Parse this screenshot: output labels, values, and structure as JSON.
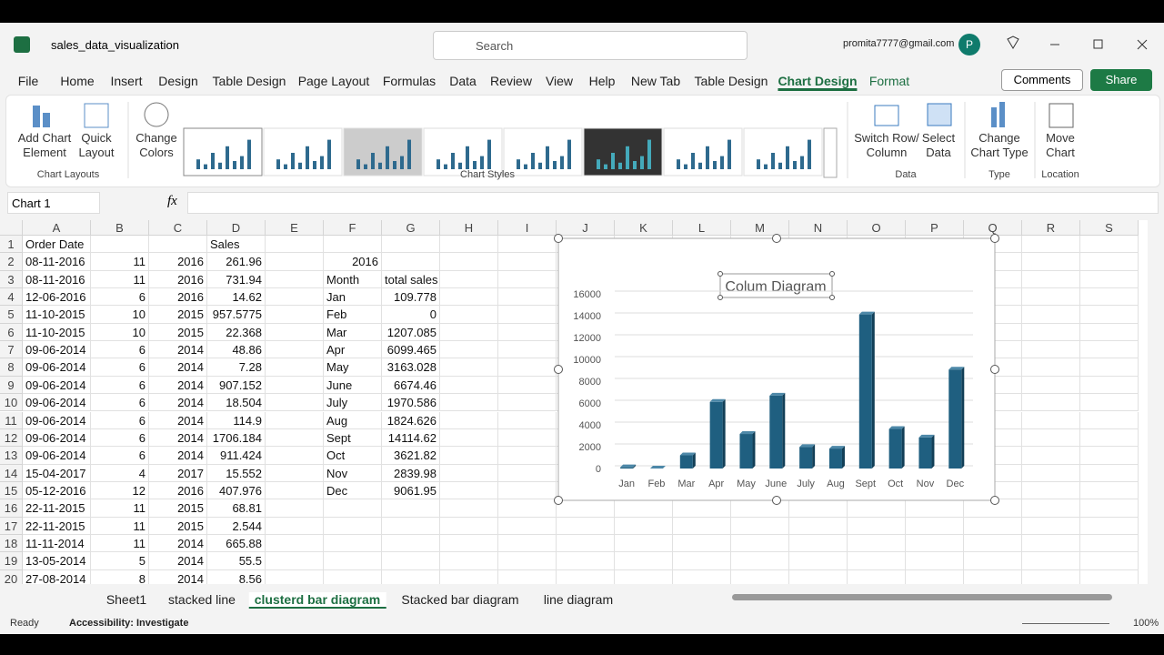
{
  "title_bar": {
    "file_name": "sales_data_visualization",
    "search": "Search",
    "account": "promita7777@gmail.com",
    "avatar": "P"
  },
  "menu": {
    "tabs": [
      "File",
      "Home",
      "Insert",
      "Design",
      "Table Design",
      "Page Layout",
      "Formulas",
      "Data",
      "Review",
      "View",
      "Help",
      "New Tab",
      "Table Design",
      "Chart Design",
      "Format"
    ],
    "comments": "Comments",
    "share": "Share"
  },
  "ribbon": {
    "groups": [
      {
        "label": "Chart Layouts",
        "buttons": [
          [
            "Add Chart",
            "Element"
          ],
          [
            "Quick",
            "Layout"
          ]
        ]
      },
      {
        "label": "Chart Styles",
        "buttons": [
          [
            "Change",
            "Colors"
          ]
        ]
      },
      {
        "label": "Data",
        "buttons": [
          [
            "Switch Row/",
            "Column"
          ],
          [
            "Select",
            "Data"
          ]
        ]
      },
      {
        "label": "Type",
        "buttons": [
          [
            "Change",
            "Chart Type"
          ]
        ]
      },
      {
        "label": "Location",
        "buttons": [
          [
            "Move",
            "Chart"
          ]
        ]
      }
    ]
  },
  "formula_bar": {
    "name_box": "Chart 1",
    "function_icon": "fx"
  },
  "sheet": {
    "columns": [
      "A",
      "B",
      "C",
      "D",
      "E",
      "F",
      "G",
      "H",
      "I",
      "J",
      "K",
      "L",
      "M",
      "N",
      "O",
      "P",
      "Q",
      "R",
      "S"
    ],
    "row_numbers": [
      1,
      2,
      3,
      4,
      5,
      6,
      7,
      8,
      9,
      10,
      11,
      12,
      13,
      14,
      15,
      16,
      17,
      18,
      19,
      20
    ],
    "rows": [
      {
        "A": "Order Date",
        "D": "Sales"
      },
      {
        "A": "08-11-2016",
        "B": 11,
        "C": 2016,
        "D": 261.96,
        "F": 2016
      },
      {
        "A": "08-11-2016",
        "B": 11,
        "C": 2016,
        "D": 731.94,
        "F": "Month",
        "G": "total sales"
      },
      {
        "A": "12-06-2016",
        "B": 6,
        "C": 2016,
        "D": 14.62,
        "F": "Jan",
        "G": 109.778
      },
      {
        "A": "11-10-2015",
        "B": 10,
        "C": 2015,
        "D": 957.5775,
        "F": "Feb",
        "G": 0
      },
      {
        "A": "11-10-2015",
        "B": 10,
        "C": 2015,
        "D": 22.368,
        "F": "Mar",
        "G": 1207.085
      },
      {
        "A": "09-06-2014",
        "B": 6,
        "C": 2014,
        "D": 48.86,
        "F": "Apr",
        "G": 6099.465
      },
      {
        "A": "09-06-2014",
        "B": 6,
        "C": 2014,
        "D": 7.28,
        "F": "May",
        "G": 3163.028
      },
      {
        "A": "09-06-2014",
        "B": 6,
        "C": 2014,
        "D": 907.152,
        "F": "June",
        "G": 6674.46
      },
      {
        "A": "09-06-2014",
        "B": 6,
        "C": 2014,
        "D": 18.504,
        "F": "July",
        "G": 1970.586
      },
      {
        "A": "09-06-2014",
        "B": 6,
        "C": 2014,
        "D": 114.9,
        "F": "Aug",
        "G": 1824.626
      },
      {
        "A": "09-06-2014",
        "B": 6,
        "C": 2014,
        "D": 1706.184,
        "F": "Sept",
        "G": 14114.62
      },
      {
        "A": "09-06-2014",
        "B": 6,
        "C": 2014,
        "D": 911.424,
        "F": "Oct",
        "G": 3621.82
      },
      {
        "A": "15-04-2017",
        "B": 4,
        "C": 2017,
        "D": 15.552,
        "F": "Nov",
        "G": 2839.98
      },
      {
        "A": "05-12-2016",
        "B": 12,
        "C": 2016,
        "D": 407.976,
        "F": "Dec",
        "G": 9061.95
      },
      {
        "A": "22-11-2015",
        "B": 11,
        "C": 2015,
        "D": 68.81
      },
      {
        "A": "22-11-2015",
        "B": 11,
        "C": 2015,
        "D": 2.544
      },
      {
        "A": "11-11-2014",
        "B": 11,
        "C": 2014,
        "D": 665.88
      },
      {
        "A": "13-05-2014",
        "B": 5,
        "C": 2014,
        "D": 55.5
      },
      {
        "A": "27-08-2014",
        "B": 8,
        "C": 2014,
        "D": 8.56
      }
    ]
  },
  "chart": {
    "type": "bar",
    "title": "Colum Diagram",
    "color": "#1f5f80",
    "ylim": [
      0,
      16000
    ],
    "yticks": [
      0,
      2000,
      4000,
      6000,
      8000,
      10000,
      12000,
      14000,
      16000
    ]
  },
  "sheet_tabs": [
    "Sheet1",
    "stacked line",
    "clusterd bar diagram",
    "Stacked bar diagram",
    "line diagram"
  ],
  "status_bar": {
    "ready": "Ready",
    "accessibility": "Accessibility: Investigate",
    "zoom": "100%"
  }
}
